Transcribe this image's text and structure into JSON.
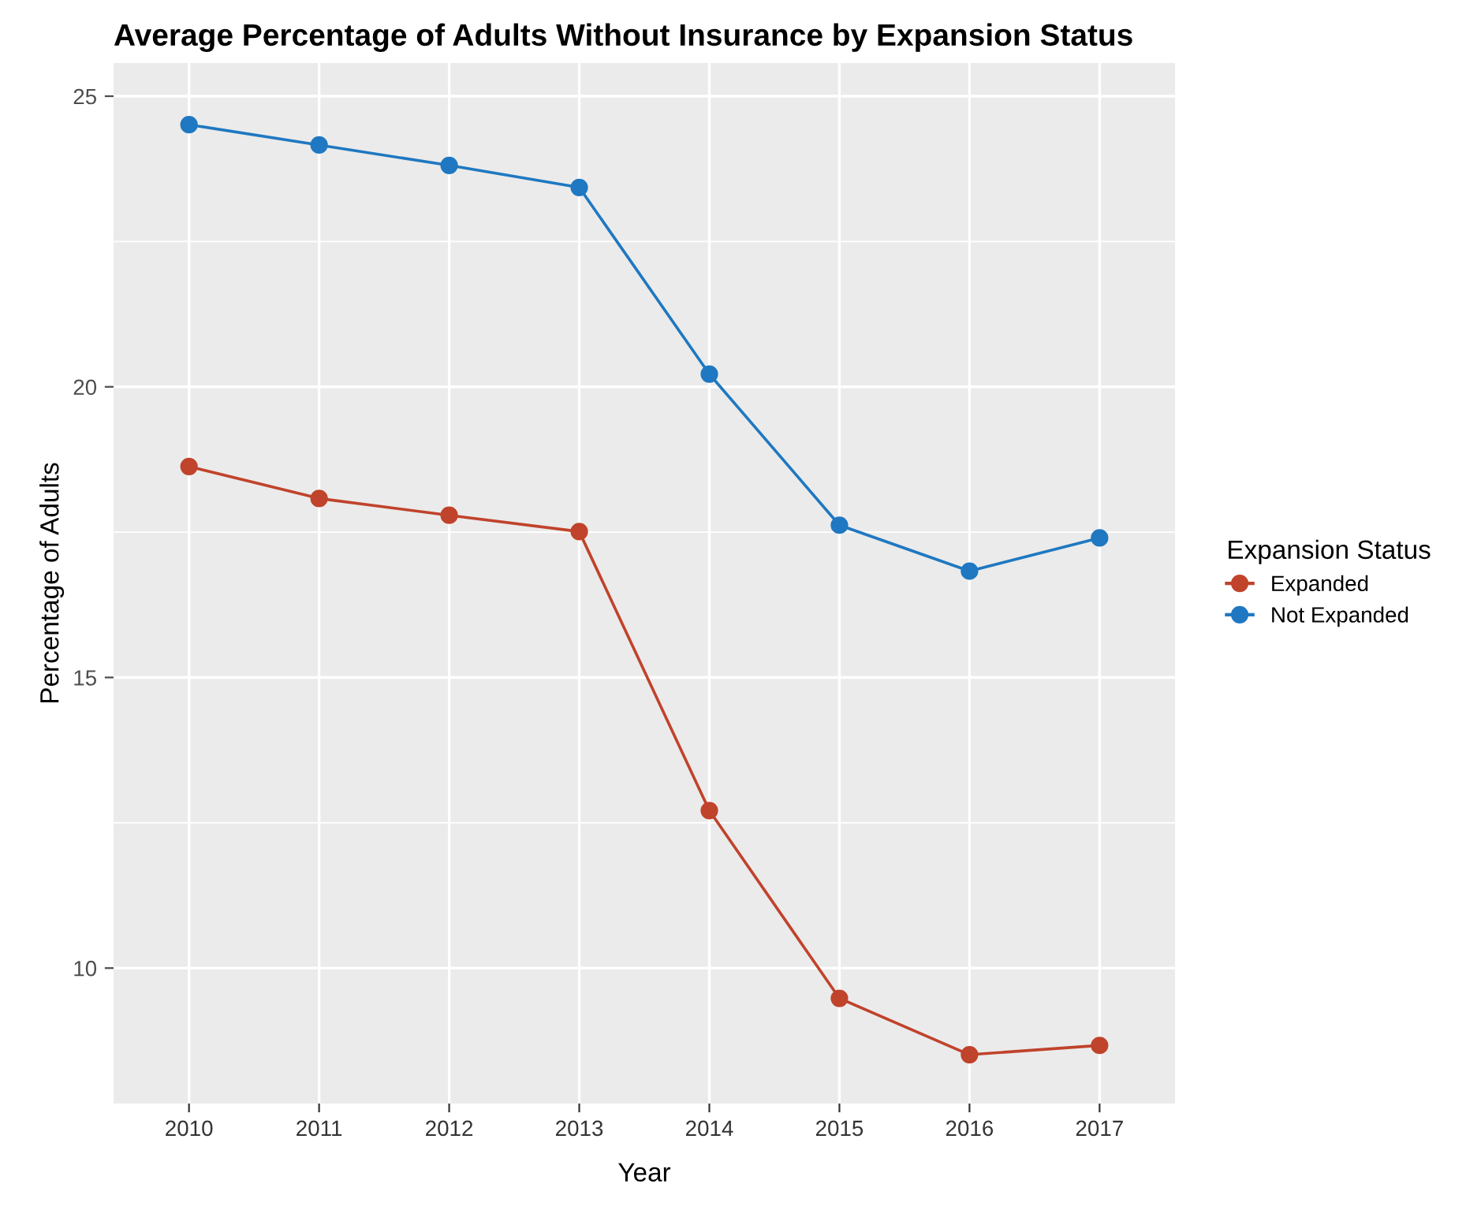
{
  "chart_data": {
    "type": "line",
    "title": "Average Percentage of Adults Without Insurance by Expansion Status",
    "xlabel": "Year",
    "ylabel": "Percentage of Adults",
    "legend_title": "Expansion Status",
    "categories": [
      "2010",
      "2011",
      "2012",
      "2013",
      "2014",
      "2015",
      "2016",
      "2017"
    ],
    "series": [
      {
        "name": "Expanded",
        "color": "#c0432b",
        "values": [
          18.63,
          18.08,
          17.79,
          17.51,
          12.71,
          9.48,
          8.51,
          8.67
        ]
      },
      {
        "name": "Not Expanded",
        "color": "#1f78c1",
        "values": [
          24.51,
          24.16,
          23.81,
          23.43,
          20.22,
          17.62,
          16.83,
          17.4
        ]
      }
    ],
    "ylim": [
      7.67,
      25.57
    ],
    "yticks": [
      10,
      15,
      20,
      25
    ],
    "grid": true,
    "legend": "right",
    "marker": "circle",
    "line_style": "solid"
  }
}
